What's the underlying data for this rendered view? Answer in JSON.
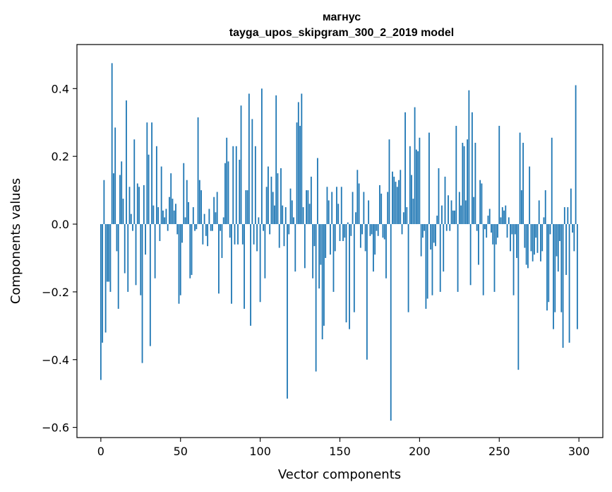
{
  "chart_data": {
    "type": "bar",
    "title": "магнус",
    "subtitle": "tayga_upos_skipgram_300_2_2019 model",
    "xlabel": "Vector components",
    "ylabel": "Components values",
    "xlim": [
      -15,
      315
    ],
    "ylim": [
      -0.63,
      0.53
    ],
    "xticks": [
      0,
      50,
      100,
      150,
      200,
      250,
      300
    ],
    "xtick_labels": [
      "0",
      "50",
      "100",
      "150",
      "200",
      "250",
      "300"
    ],
    "yticks": [
      -0.6,
      -0.4,
      -0.2,
      0.0,
      0.2,
      0.4
    ],
    "ytick_labels": [
      "−0.6",
      "−0.4",
      "−0.2",
      "0.0",
      "0.2",
      "0.4"
    ],
    "grid": false,
    "bar_color": "#1f77b4",
    "x_start": 0,
    "values": [
      -0.46,
      -0.35,
      0.13,
      -0.32,
      -0.17,
      -0.17,
      -0.2,
      0.475,
      0.15,
      0.285,
      -0.08,
      -0.25,
      0.145,
      0.185,
      0.075,
      -0.145,
      0.365,
      -0.2,
      0.11,
      0.03,
      -0.02,
      0.25,
      -0.18,
      0.12,
      0.11,
      -0.21,
      -0.41,
      0.115,
      -0.09,
      0.3,
      0.205,
      -0.36,
      0.3,
      0.055,
      -0.16,
      0.23,
      0.05,
      -0.05,
      0.17,
      0.04,
      0.02,
      0.045,
      -0.02,
      0.08,
      0.15,
      0.075,
      0.04,
      0.06,
      -0.03,
      -0.235,
      -0.21,
      -0.055,
      0.18,
      0.02,
      0.13,
      0.065,
      -0.16,
      -0.15,
      0.05,
      -0.02,
      -0.015,
      0.315,
      0.13,
      0.1,
      -0.06,
      0.03,
      -0.035,
      -0.065,
      0.045,
      -0.02,
      -0.02,
      0.08,
      0.035,
      0.095,
      -0.205,
      -0.02,
      -0.1,
      0.02,
      0.18,
      0.255,
      0.185,
      -0.04,
      -0.235,
      0.23,
      -0.06,
      0.23,
      -0.06,
      0.19,
      0.35,
      -0.06,
      -0.25,
      0.1,
      0.1,
      0.385,
      -0.3,
      0.31,
      -0.06,
      0.23,
      -0.08,
      0.02,
      -0.23,
      0.4,
      -0.02,
      -0.16,
      0.11,
      0.17,
      -0.03,
      0.14,
      0.095,
      0.055,
      0.38,
      0.15,
      -0.07,
      0.165,
      0.055,
      -0.065,
      0.05,
      -0.515,
      -0.03,
      0.105,
      0.07,
      0.02,
      -0.14,
      0.3,
      0.36,
      0.29,
      0.385,
      0.05,
      -0.13,
      0.1,
      0.1,
      0.06,
      0.14,
      -0.16,
      -0.065,
      -0.435,
      0.195,
      -0.19,
      -0.12,
      -0.34,
      -0.3,
      -0.1,
      0.11,
      0.07,
      -0.09,
      0.095,
      -0.2,
      -0.08,
      0.11,
      0.06,
      -0.05,
      0.11,
      -0.05,
      -0.04,
      -0.29,
      0.005,
      -0.31,
      -0.035,
      0.095,
      -0.26,
      0.035,
      0.16,
      0.12,
      -0.07,
      -0.03,
      0.095,
      -0.08,
      -0.4,
      0.07,
      -0.035,
      -0.03,
      -0.14,
      -0.09,
      -0.02,
      -0.035,
      0.115,
      0.09,
      -0.04,
      -0.045,
      -0.16,
      0.095,
      0.25,
      -0.58,
      0.155,
      0.14,
      0.125,
      0.11,
      0.13,
      0.16,
      -0.03,
      0.035,
      0.33,
      0.05,
      -0.26,
      0.23,
      0.145,
      0.075,
      0.345,
      0.22,
      0.215,
      0.255,
      -0.095,
      -0.04,
      -0.02,
      -0.25,
      -0.22,
      0.27,
      -0.075,
      -0.21,
      -0.055,
      -0.065,
      0.025,
      0.165,
      -0.2,
      0.055,
      -0.14,
      0.14,
      -0.02,
      0.085,
      -0.02,
      0.07,
      0.04,
      0.04,
      0.29,
      -0.2,
      0.095,
      0.055,
      0.24,
      0.23,
      0.07,
      0.25,
      0.395,
      -0.18,
      0.33,
      0.08,
      0.24,
      -0.02,
      -0.12,
      0.13,
      0.12,
      -0.21,
      -0.015,
      -0.04,
      0.025,
      0.045,
      -0.025,
      -0.06,
      -0.2,
      -0.06,
      -0.04,
      0.29,
      0.02,
      0.05,
      0.04,
      0.055,
      -0.04,
      0.02,
      -0.08,
      -0.03,
      -0.21,
      -0.03,
      -0.1,
      -0.43,
      0.27,
      0.1,
      0.24,
      -0.07,
      -0.12,
      -0.13,
      0.17,
      -0.08,
      -0.11,
      -0.09,
      -0.04,
      -0.085,
      0.07,
      -0.11,
      -0.08,
      0.02,
      0.1,
      -0.255,
      -0.23,
      -0.03,
      0.255,
      -0.31,
      -0.26,
      -0.095,
      -0.14,
      -0.05,
      -0.26,
      -0.365,
      0.05,
      -0.15,
      0.05,
      -0.35,
      0.105,
      -0.025,
      -0.08,
      0.41,
      -0.31
    ]
  }
}
